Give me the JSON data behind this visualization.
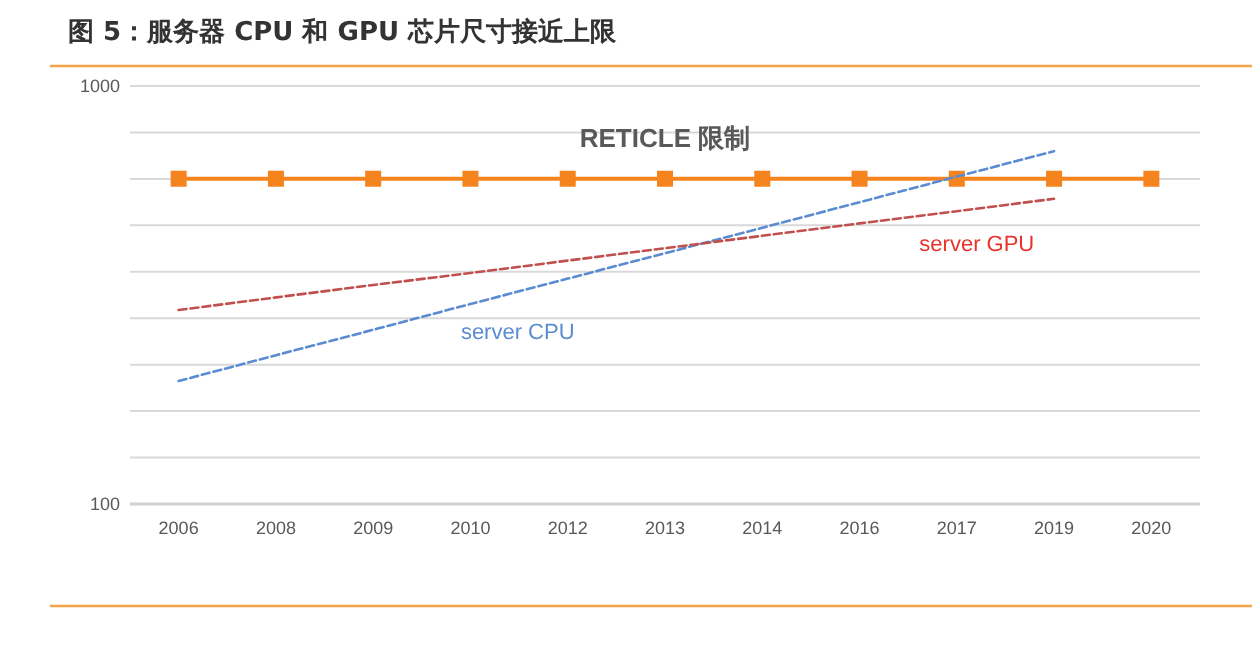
{
  "chart_data": {
    "type": "line",
    "title": "图 5：服务器 CPU 和 GPU 芯片尺寸接近上限",
    "categories": [
      "2006",
      "2008",
      "2009",
      "2010",
      "2012",
      "2013",
      "2014",
      "2016",
      "2017",
      "2019",
      "2020"
    ],
    "log": true,
    "ylim": [
      100,
      1000
    ],
    "yticks": [
      100,
      1000
    ],
    "grid": "y",
    "legend": false,
    "series": [
      {
        "name": "RETICLE 限制",
        "color": "#f5841f",
        "marker": "square",
        "line_style": "solid",
        "values": [
          600,
          600,
          600,
          600,
          600,
          600,
          600,
          600,
          600,
          600,
          600
        ]
      },
      {
        "name": "server CPU",
        "color": "#5b8bd0",
        "marker": "none",
        "line_style": "dashed",
        "values": [
          197,
          227,
          261,
          301,
          346,
          398,
          458,
          527,
          607,
          698,
          null
        ]
      },
      {
        "name": "server GPU",
        "color": "#c0504d",
        "marker": "none",
        "line_style": "dashed",
        "values": [
          291,
          312,
          334,
          357,
          382,
          409,
          438,
          469,
          502,
          537,
          null
        ]
      }
    ]
  }
}
